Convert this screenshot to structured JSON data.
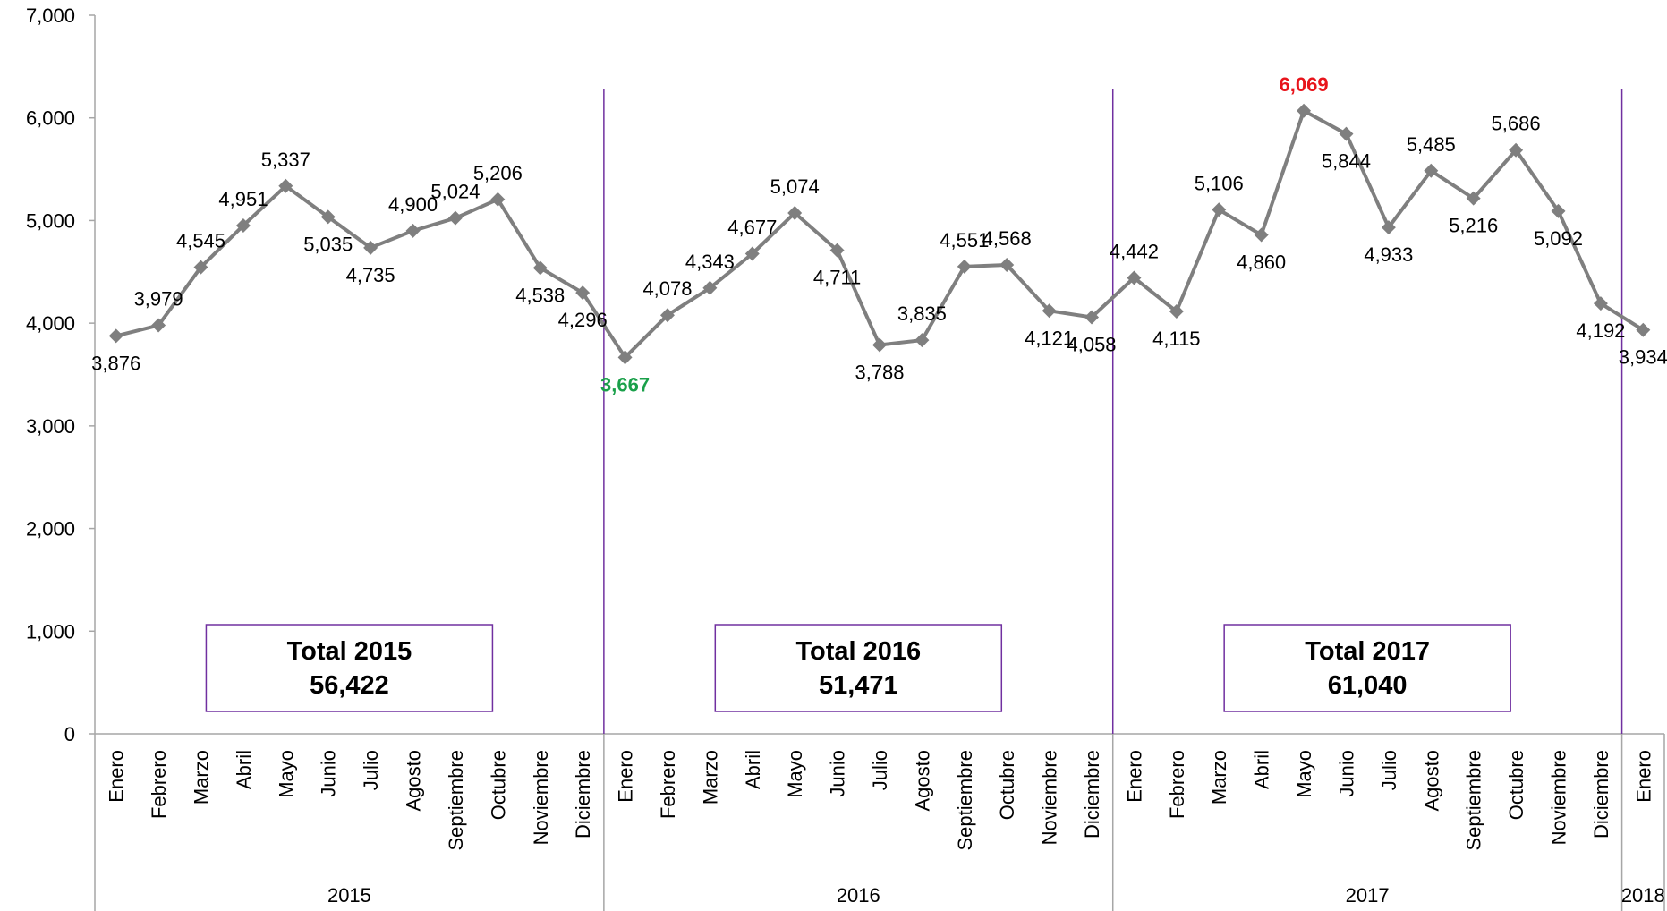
{
  "chart_data": {
    "type": "line",
    "ylim": [
      0,
      7000
    ],
    "yticks": [
      0,
      1000,
      2000,
      3000,
      4000,
      5000,
      6000,
      7000
    ],
    "ytick_labels": [
      "0",
      "1,000",
      "2,000",
      "3,000",
      "4,000",
      "5,000",
      "6,000",
      "7,000"
    ],
    "grid": false,
    "line_color": "#7f7f7f",
    "separator_color": "#7030a0",
    "min_color": "#1aa04a",
    "max_color": "#e8141b",
    "groups": [
      {
        "year": "2015",
        "months": [
          "Enero",
          "Febrero",
          "Marzo",
          "Abril",
          "Mayo",
          "Junio",
          "Julio",
          "Agosto",
          "Septiembre",
          "Octubre",
          "Noviembre",
          "Diciembre"
        ]
      },
      {
        "year": "2016",
        "months": [
          "Enero",
          "Febrero",
          "Marzo",
          "Abril",
          "Mayo",
          "Junio",
          "Julio",
          "Agosto",
          "Septiembre",
          "Octubre",
          "Noviembre",
          "Diciembre"
        ]
      },
      {
        "year": "2017",
        "months": [
          "Enero",
          "Febrero",
          "Marzo",
          "Abril",
          "Mayo",
          "Junio",
          "Julio",
          "Agosto",
          "Septiembre",
          "Octubre",
          "Noviembre",
          "Diciembre"
        ]
      },
      {
        "year": "2018",
        "months": [
          "Enero"
        ]
      }
    ],
    "values": [
      3876,
      3979,
      4545,
      4951,
      5337,
      5035,
      4735,
      4900,
      5024,
      5206,
      4538,
      4296,
      3667,
      4078,
      4343,
      4677,
      5074,
      4711,
      3788,
      3835,
      4551,
      4568,
      4121,
      4058,
      4442,
      4115,
      5106,
      4860,
      6069,
      5844,
      4933,
      5485,
      5216,
      5686,
      5092,
      4192,
      3934
    ],
    "labels": [
      "3,876",
      "3,979",
      "4,545",
      "4,951",
      "5,337",
      "5,035",
      "4,735",
      "4,900",
      "5,024",
      "5,206",
      "4,538",
      "4,296",
      "3,667",
      "4,078",
      "4,343",
      "4,677",
      "5,074",
      "4,711",
      "3,788",
      "3,835",
      "4,551",
      "4,568",
      "4,121",
      "4,058",
      "4,442",
      "4,115",
      "5,106",
      "4,860",
      "6,069",
      "5,844",
      "4,933",
      "5,485",
      "5,216",
      "5,686",
      "5,092",
      "4,192",
      "3,934"
    ],
    "min_index": 12,
    "max_index": 28,
    "annotations": [
      {
        "title": "Total 2015",
        "value": "56,422"
      },
      {
        "title": "Total 2016",
        "value": "51,471"
      },
      {
        "title": "Total 2017",
        "value": "61,040"
      }
    ]
  }
}
